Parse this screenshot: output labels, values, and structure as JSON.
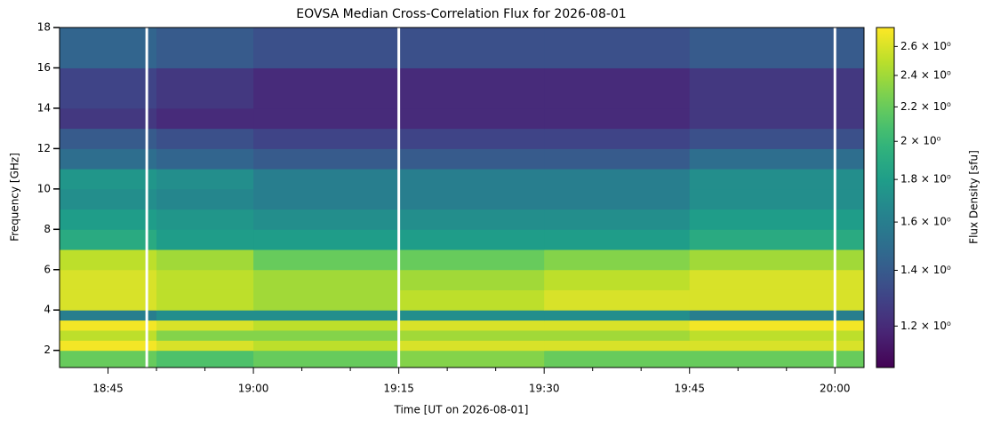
{
  "chart_data": {
    "type": "heatmap",
    "title": "EOVSA Median Cross-Correlation Flux for 2026-08-01",
    "x_label": "Time [UT on 2026-08-01]",
    "y_label": "Frequency [GHz]",
    "colorbar_label": "Flux Density [sfu]",
    "xlim": [
      "18:40",
      "20:03"
    ],
    "xticks": [
      "18:45",
      "19:00",
      "19:15",
      "19:30",
      "19:45",
      "20:00"
    ],
    "xminor": [
      "18:50",
      "18:55",
      "19:05",
      "19:10",
      "19:20",
      "19:25",
      "19:35",
      "19:40",
      "19:50",
      "19:55"
    ],
    "ylim": [
      1.15,
      18
    ],
    "yticks": [
      2,
      4,
      6,
      8,
      10,
      12,
      14,
      16,
      18
    ],
    "x_edges": [
      "18:40",
      "18:50",
      "19:00",
      "19:15",
      "19:30",
      "19:45",
      "20:03"
    ],
    "y_edges": [
      1.15,
      2,
      2.5,
      3,
      3.5,
      4,
      5,
      6,
      7,
      8,
      9,
      10,
      11,
      12,
      13,
      14,
      16,
      18
    ],
    "z": [
      [
        2.2,
        2.1,
        2.2,
        2.3,
        2.2,
        2.2
      ],
      [
        2.7,
        2.6,
        2.5,
        2.6,
        2.6,
        2.6
      ],
      [
        2.5,
        2.3,
        2.3,
        2.4,
        2.4,
        2.5
      ],
      [
        2.7,
        2.6,
        2.5,
        2.6,
        2.6,
        2.7
      ],
      [
        1.6,
        1.7,
        1.7,
        1.7,
        1.7,
        1.6
      ],
      [
        2.6,
        2.5,
        2.4,
        2.5,
        2.6,
        2.6
      ],
      [
        2.6,
        2.5,
        2.4,
        2.4,
        2.5,
        2.6
      ],
      [
        2.5,
        2.4,
        2.2,
        2.2,
        2.3,
        2.4
      ],
      [
        1.9,
        1.8,
        1.8,
        1.8,
        1.8,
        1.9
      ],
      [
        1.8,
        1.75,
        1.7,
        1.7,
        1.7,
        1.8
      ],
      [
        1.7,
        1.65,
        1.6,
        1.6,
        1.6,
        1.7
      ],
      [
        1.75,
        1.7,
        1.6,
        1.6,
        1.6,
        1.7
      ],
      [
        1.5,
        1.45,
        1.4,
        1.4,
        1.4,
        1.5
      ],
      [
        1.4,
        1.35,
        1.3,
        1.3,
        1.3,
        1.35
      ],
      [
        1.25,
        1.2,
        1.2,
        1.2,
        1.2,
        1.25
      ],
      [
        1.3,
        1.25,
        1.2,
        1.2,
        1.2,
        1.25
      ],
      [
        1.45,
        1.4,
        1.35,
        1.35,
        1.35,
        1.4
      ]
    ],
    "gaps": [
      "18:49",
      "19:15",
      "20:00"
    ],
    "colormap": "viridis",
    "color_scale": "log",
    "clim": [
      1.07,
      2.74
    ],
    "cticks": [
      {
        "value": 1.2,
        "label": "1.2 × 10⁰"
      },
      {
        "value": 1.4,
        "label": "1.4 × 10⁰"
      },
      {
        "value": 1.6,
        "label": "1.6 × 10⁰"
      },
      {
        "value": 1.8,
        "label": "1.8 × 10⁰"
      },
      {
        "value": 2.0,
        "label": "2 × 10⁰"
      },
      {
        "value": 2.2,
        "label": "2.2 × 10⁰"
      },
      {
        "value": 2.4,
        "label": "2.4 × 10⁰"
      },
      {
        "value": 2.6,
        "label": "2.6 × 10⁰"
      }
    ]
  }
}
